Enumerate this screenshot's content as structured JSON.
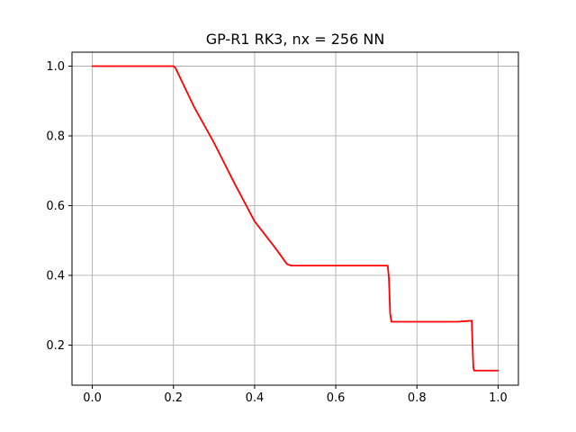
{
  "chart_data": {
    "type": "line",
    "title": "GP-R1 RK3, nx = 256 NN",
    "xlabel": "",
    "ylabel": "",
    "xlim": [
      -0.05,
      1.05
    ],
    "ylim": [
      0.085,
      1.04
    ],
    "grid": true,
    "x_ticks": [
      0.0,
      0.2,
      0.4,
      0.6,
      0.8,
      1.0
    ],
    "x_tick_labels": [
      "0.0",
      "0.2",
      "0.4",
      "0.6",
      "0.8",
      "1.0"
    ],
    "y_ticks": [
      0.2,
      0.4,
      0.6,
      0.8,
      1.0
    ],
    "y_tick_labels": [
      "0.2",
      "0.4",
      "0.6",
      "0.8",
      "1.0"
    ],
    "series": [
      {
        "color": "#ff0000",
        "x": [
          0.0,
          0.1,
          0.2,
          0.205,
          0.25,
          0.3,
          0.35,
          0.4,
          0.45,
          0.48,
          0.49,
          0.55,
          0.6,
          0.65,
          0.7,
          0.728,
          0.731,
          0.734,
          0.737,
          0.8,
          0.85,
          0.9,
          0.935,
          0.937,
          0.939,
          0.941,
          0.97,
          1.0
        ],
        "y": [
          1.0,
          1.0,
          1.0,
          0.995,
          0.885,
          0.78,
          0.665,
          0.555,
          0.48,
          0.432,
          0.428,
          0.428,
          0.428,
          0.428,
          0.428,
          0.428,
          0.39,
          0.29,
          0.267,
          0.267,
          0.267,
          0.267,
          0.27,
          0.2,
          0.135,
          0.127,
          0.127,
          0.127
        ]
      }
    ]
  }
}
